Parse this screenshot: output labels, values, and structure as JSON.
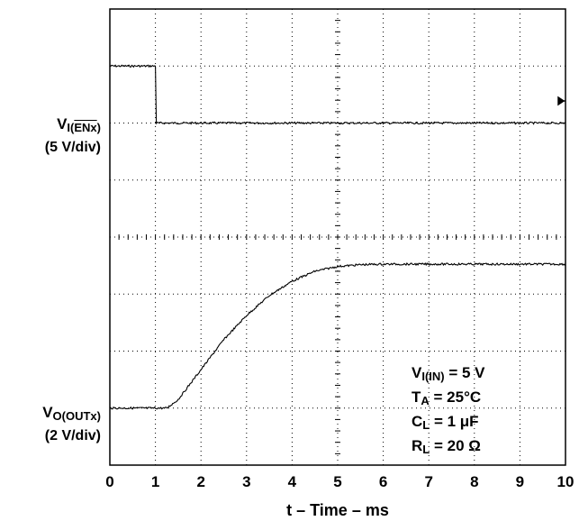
{
  "chart_data": {
    "type": "line",
    "xlabel": "t – Time – ms",
    "x_ticks": [
      "0",
      "1",
      "2",
      "3",
      "4",
      "5",
      "6",
      "7",
      "8",
      "9",
      "10"
    ],
    "xlim": [
      0,
      10
    ],
    "divisions": {
      "x": 10,
      "y": 8
    },
    "grid": true,
    "series": [
      {
        "name": "VI(ENx)",
        "channel_label": {
          "main": "V",
          "sub": "I(",
          "sub_over": "ENx",
          "close": ")"
        },
        "scale": "(5 V/div)",
        "units": "V",
        "points": [
          [
            0,
            5
          ],
          [
            1.0,
            5
          ],
          [
            1.02,
            0
          ],
          [
            10,
            0
          ]
        ]
      },
      {
        "name": "VO(OUTx)",
        "channel_label": {
          "main": "V",
          "sub": "O(OUTx)"
        },
        "scale": "(2 V/div)",
        "units": "V",
        "points": [
          [
            0,
            0
          ],
          [
            1.25,
            0
          ],
          [
            1.5,
            0.3
          ],
          [
            2.0,
            1.35
          ],
          [
            2.5,
            2.4
          ],
          [
            3.0,
            3.25
          ],
          [
            3.5,
            3.95
          ],
          [
            4.0,
            4.45
          ],
          [
            4.5,
            4.8
          ],
          [
            5.0,
            4.97
          ],
          [
            5.5,
            5.03
          ],
          [
            6.0,
            5.05
          ],
          [
            10,
            5.05
          ]
        ]
      }
    ],
    "conditions": [
      {
        "main": "V",
        "sub": "I(IN)",
        "rest": " = 5 V"
      },
      {
        "main": "T",
        "sub": "A",
        "rest": " = 25°C"
      },
      {
        "main": "C",
        "sub": "L",
        "rest": " = 1 μF"
      },
      {
        "main": "R",
        "sub": "L",
        "rest": " = 20 Ω"
      }
    ]
  }
}
